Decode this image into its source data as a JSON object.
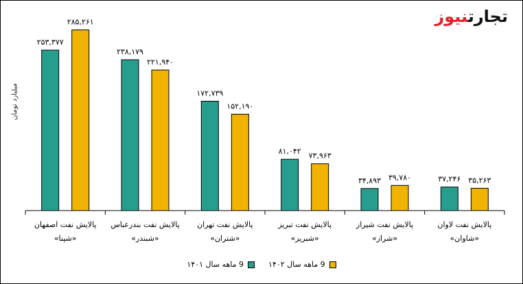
{
  "logo": {
    "part1": "تجارت",
    "part2": "نیوز"
  },
  "chart_data": {
    "type": "bar",
    "ylabel": "میلیارد تومان",
    "ylim": [
      0,
      300000
    ],
    "grid": false,
    "legend_placement": "bottom",
    "categories": [
      [
        "پالایش نفت اصفهان",
        "«شپنا»"
      ],
      [
        "پالایش نفت بندرعباس",
        "«شبندر»"
      ],
      [
        "پالایش نفت تهران",
        "«شتران»"
      ],
      [
        "پالایش نفت تبریز",
        "«شبریز»"
      ],
      [
        "پالایش نفت شیراز",
        "«شراز»"
      ],
      [
        "پالایش نفت لاوان",
        "«شاوان»"
      ]
    ],
    "series": [
      {
        "name": "9 ماهه سال ۱۴۰۱",
        "color": "#279d8e",
        "values": [
          253377,
          238179,
          172739,
          81042,
          34893,
          37246
        ],
        "labels": [
          "۲۵۳,۳۷۷",
          "۲۳۸,۱۷۹",
          "۱۷۲,۷۳۹",
          "۸۱,۰۴۲",
          "۳۴,۸۹۳",
          "۳۷,۲۴۶"
        ]
      },
      {
        "name": "9 ماهه سال ۱۴۰۲",
        "color": "#f0b400",
        "values": [
          285261,
          221940,
          152190,
          73963,
          39780,
          35263
        ],
        "labels": [
          "۲۸۵,۲۶۱",
          "۲۲۱,۹۴۰",
          "۱۵۲,۱۹۰",
          "۷۳,۹۶۳",
          "۳۹,۷۸۰",
          "۳۵,۲۶۳"
        ]
      }
    ]
  }
}
